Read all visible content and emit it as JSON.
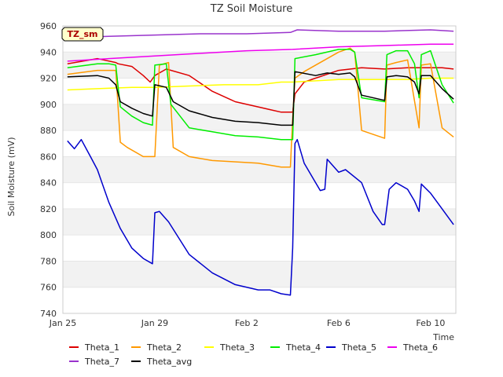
{
  "chart_data": {
    "type": "line",
    "title": "TZ Soil Moisture",
    "xlabel": "Time",
    "ylabel": "Soil Moisture (mV)",
    "stamp": "TZ_sm",
    "ylim": [
      740,
      960
    ],
    "xlim": [
      0,
      17.1
    ],
    "y_ticks": [
      740,
      760,
      780,
      800,
      820,
      840,
      860,
      880,
      900,
      920,
      940,
      960
    ],
    "x_ticks": [
      {
        "x": 0,
        "label": "Jan 25"
      },
      {
        "x": 4,
        "label": "Jan 29"
      },
      {
        "x": 8,
        "label": "Feb 2"
      },
      {
        "x": 12,
        "label": "Feb 6"
      },
      {
        "x": 16,
        "label": "Feb 10"
      }
    ],
    "series": [
      {
        "name": "Theta_1",
        "color": "#dd0000",
        "x": [
          0.2,
          1.5,
          2.3,
          2.4,
          3.0,
          3.5,
          3.8,
          4.0,
          4.5,
          5.5,
          6.5,
          7.5,
          8.5,
          9.0,
          9.5,
          10.0,
          10.1,
          10.5,
          11.0,
          12.0,
          13.0,
          14.0,
          15.0,
          16.0,
          16.5,
          17.0
        ],
        "y": [
          931,
          935,
          932,
          931,
          929,
          922,
          917,
          922,
          927,
          922,
          910,
          902,
          898,
          896,
          894,
          894,
          908,
          917,
          920,
          926,
          928,
          927,
          928,
          928,
          928,
          927
        ]
      },
      {
        "name": "Theta_2",
        "color": "#ff9900",
        "x": [
          0.2,
          1.5,
          2.3,
          2.5,
          2.8,
          3.5,
          4.0,
          4.2,
          4.6,
          4.8,
          5.5,
          6.5,
          8.5,
          9.5,
          9.9,
          10.0,
          10.1,
          10.5,
          12.0,
          12.5,
          12.7,
          13.0,
          13.5,
          14.0,
          14.1,
          14.5,
          15.0,
          15.5,
          15.6,
          16.0,
          16.5,
          17.0
        ],
        "y": [
          923,
          926,
          926,
          871,
          867,
          860,
          860,
          930,
          932,
          867,
          860,
          857,
          855,
          852,
          852,
          890,
          920,
          925,
          940,
          943,
          940,
          880,
          877,
          874,
          930,
          932,
          934,
          882,
          930,
          931,
          882,
          875
        ]
      },
      {
        "name": "Theta_3",
        "color": "#ffff00",
        "x": [
          0.2,
          1.5,
          3.0,
          4.0,
          5.5,
          7.0,
          8.5,
          9.5,
          10.0,
          11.0,
          12.0,
          13.0,
          14.0,
          15.0,
          16.0,
          17.0
        ],
        "y": [
          911,
          912,
          913,
          913,
          914,
          915,
          915,
          917,
          917,
          918,
          919,
          919,
          919,
          919,
          920,
          920
        ]
      },
      {
        "name": "Theta_4",
        "color": "#00ee00",
        "x": [
          0.2,
          1.5,
          2.0,
          2.3,
          2.5,
          3.0,
          3.5,
          3.9,
          4.0,
          4.5,
          4.7,
          5.5,
          6.5,
          7.5,
          8.5,
          9.5,
          10.0,
          10.1,
          11.0,
          12.0,
          12.5,
          12.7,
          13.0,
          14.0,
          14.1,
          14.5,
          15.0,
          15.3,
          15.5,
          15.6,
          16.0,
          16.5,
          17.0
        ],
        "y": [
          928,
          931,
          931,
          930,
          898,
          891,
          886,
          884,
          930,
          931,
          900,
          882,
          879,
          876,
          875,
          873,
          873,
          935,
          938,
          942,
          942,
          940,
          905,
          902,
          938,
          941,
          941,
          931,
          905,
          938,
          941,
          915,
          901
        ]
      },
      {
        "name": "Theta_5",
        "color": "#0000cc",
        "x": [
          0.2,
          0.5,
          0.8,
          1.2,
          1.5,
          2.0,
          2.5,
          3.0,
          3.5,
          3.9,
          4.0,
          4.2,
          4.6,
          5.5,
          6.5,
          7.5,
          8.5,
          9.0,
          9.5,
          9.9,
          10.0,
          10.1,
          10.2,
          10.5,
          11.0,
          11.2,
          11.4,
          11.5,
          12.0,
          12.3,
          13.0,
          13.5,
          13.9,
          14.0,
          14.2,
          14.5,
          15.0,
          15.3,
          15.5,
          15.6,
          16.0,
          16.5,
          17.0
        ],
        "y": [
          872,
          866,
          873,
          860,
          850,
          825,
          805,
          790,
          782,
          778,
          817,
          818,
          810,
          785,
          771,
          762,
          758,
          758,
          755,
          754,
          790,
          870,
          873,
          855,
          840,
          834,
          835,
          858,
          848,
          850,
          840,
          818,
          808,
          808,
          835,
          840,
          835,
          826,
          818,
          839,
          832,
          820,
          808
        ]
      },
      {
        "name": "Theta_6",
        "color": "#ee00ee",
        "x": [
          0.2,
          2.0,
          4.0,
          6.0,
          8.0,
          10.0,
          12.0,
          14.0,
          16.0,
          17.0
        ],
        "y": [
          933,
          935,
          937,
          939,
          941,
          942,
          944,
          945,
          946,
          946
        ]
      },
      {
        "name": "Theta_7",
        "color": "#9933cc",
        "x": [
          0.2,
          2.0,
          4.0,
          6.0,
          8.0,
          9.9,
          10.2,
          12.0,
          14.0,
          16.0,
          17.0
        ],
        "y": [
          951,
          952,
          953,
          954,
          954,
          955,
          957,
          956,
          956,
          957,
          956
        ]
      },
      {
        "name": "Theta_avg",
        "color": "#000000",
        "x": [
          0.2,
          1.5,
          2.0,
          2.3,
          2.5,
          3.0,
          3.5,
          3.9,
          4.0,
          4.5,
          4.8,
          5.5,
          6.5,
          7.5,
          8.5,
          9.5,
          10.0,
          10.1,
          11.0,
          11.5,
          12.0,
          12.5,
          12.7,
          13.0,
          14.0,
          14.1,
          14.5,
          15.0,
          15.3,
          15.5,
          15.6,
          16.0,
          16.5,
          17.0
        ],
        "y": [
          921,
          922,
          920,
          915,
          902,
          897,
          893,
          891,
          915,
          913,
          902,
          895,
          890,
          887,
          886,
          884,
          884,
          925,
          922,
          924,
          923,
          924,
          921,
          907,
          903,
          921,
          922,
          921,
          917,
          908,
          922,
          922,
          912,
          904
        ]
      }
    ]
  }
}
